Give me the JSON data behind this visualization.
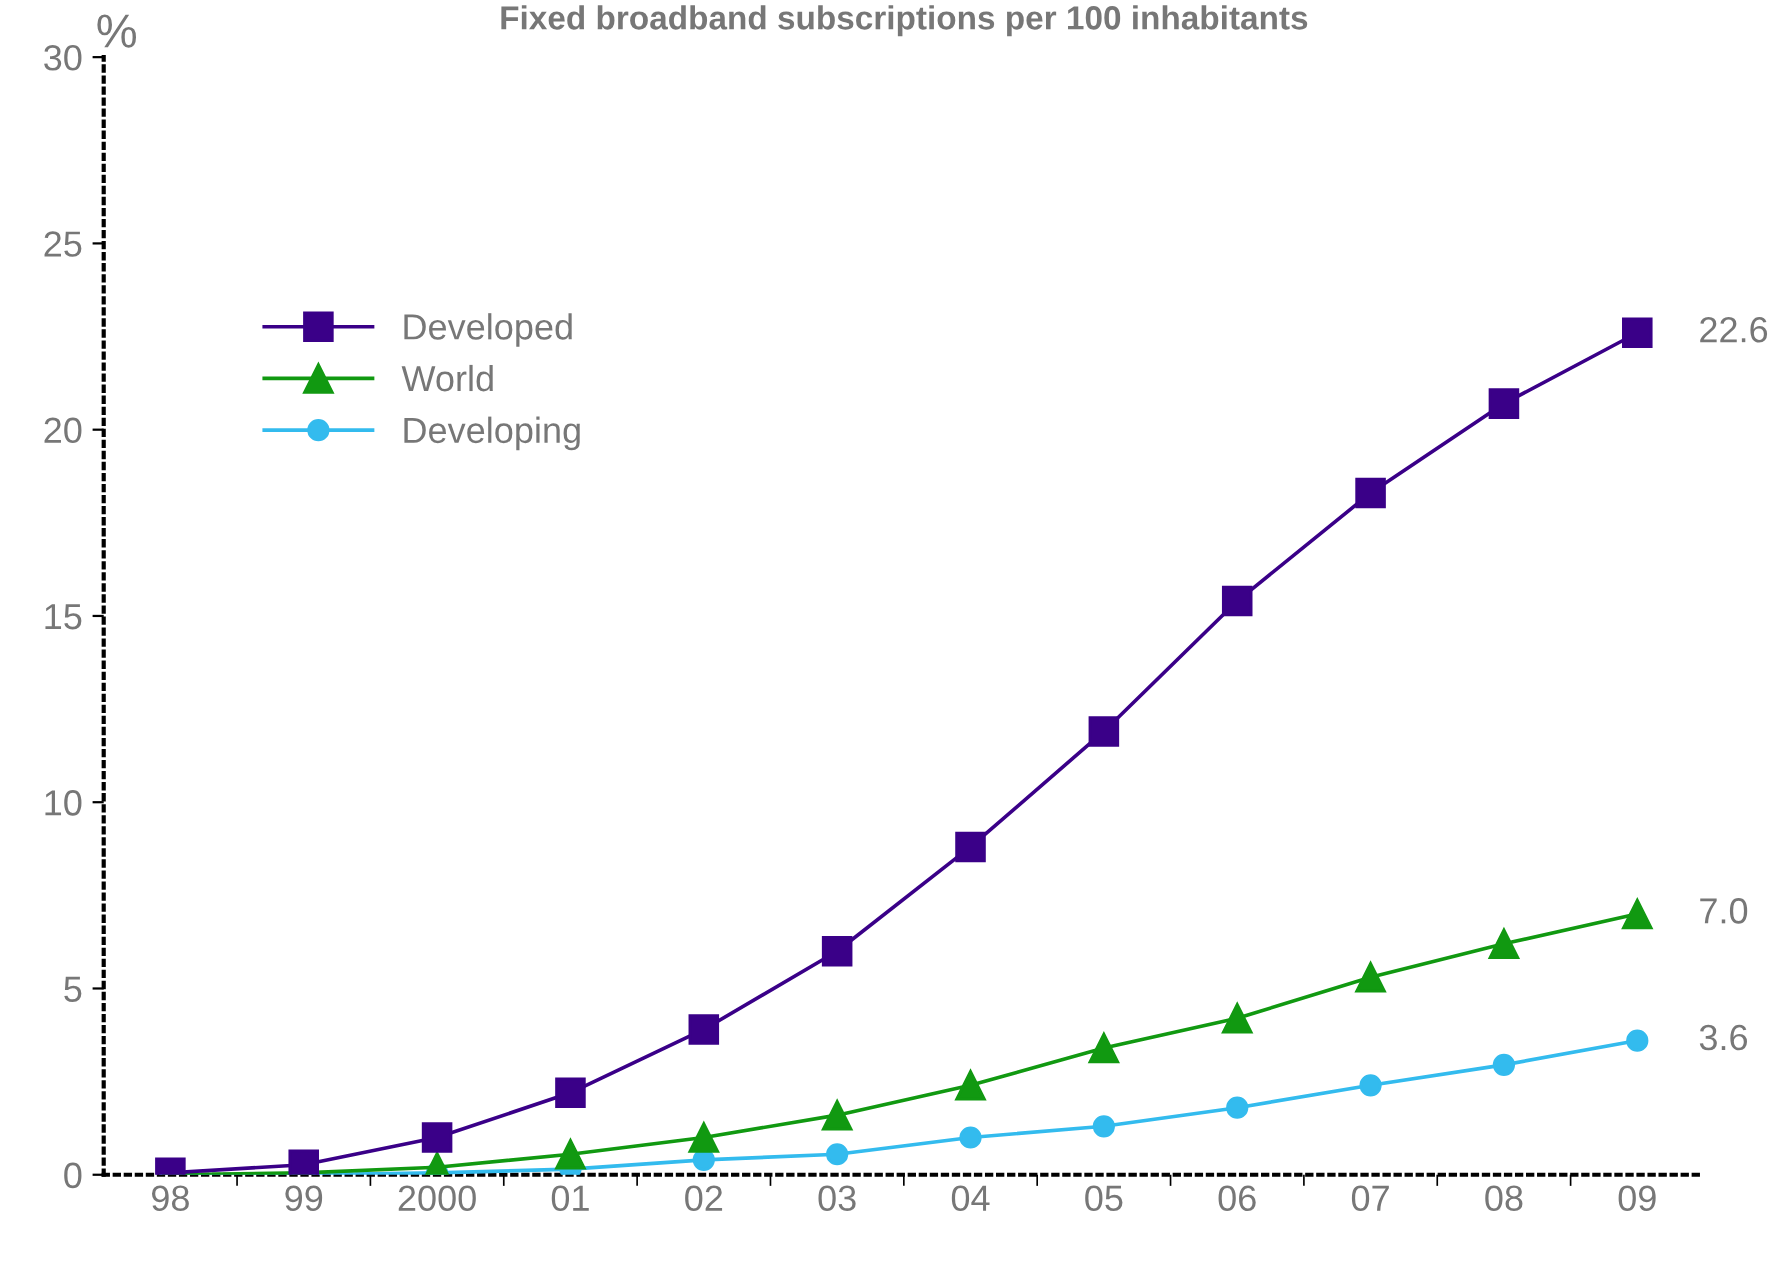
{
  "chart_data": {
    "type": "line",
    "title": "Fixed broadband subscriptions per 100 inhabitants",
    "ylabel": "%",
    "categories": [
      "98",
      "99",
      "2000",
      "01",
      "02",
      "03",
      "04",
      "05",
      "06",
      "07",
      "08",
      "09"
    ],
    "ylim": [
      0,
      30
    ],
    "yticks": [
      0,
      5,
      10,
      15,
      20,
      25,
      30
    ],
    "grid": false,
    "legend": "top left",
    "line_style": "solid",
    "series": [
      {
        "name": "Developed",
        "color": "#3a0088",
        "marker": "square",
        "values": [
          0.05,
          0.27,
          1.0,
          2.2,
          3.9,
          6.0,
          8.8,
          11.9,
          15.4,
          18.3,
          20.7,
          22.6
        ],
        "value_labels": [
          null,
          null,
          null,
          null,
          null,
          null,
          null,
          null,
          null,
          null,
          null,
          "22.6"
        ]
      },
      {
        "name": "World",
        "color": "#119911",
        "marker": "triangle",
        "values": [
          0.0,
          0.05,
          0.2,
          0.55,
          1.0,
          1.6,
          2.4,
          3.4,
          4.2,
          5.3,
          6.2,
          7.0
        ],
        "value_labels": [
          null,
          null,
          null,
          null,
          null,
          null,
          null,
          null,
          null,
          null,
          null,
          "7.0"
        ]
      },
      {
        "name": "Developing",
        "color": "#33bbee",
        "marker": "circle",
        "values": [
          0.0,
          0.0,
          0.05,
          0.15,
          0.4,
          0.55,
          1.0,
          1.3,
          1.8,
          2.4,
          2.95,
          3.6
        ],
        "value_labels": [
          null,
          null,
          null,
          null,
          null,
          null,
          null,
          null,
          null,
          null,
          null,
          "3.6"
        ]
      }
    ]
  }
}
